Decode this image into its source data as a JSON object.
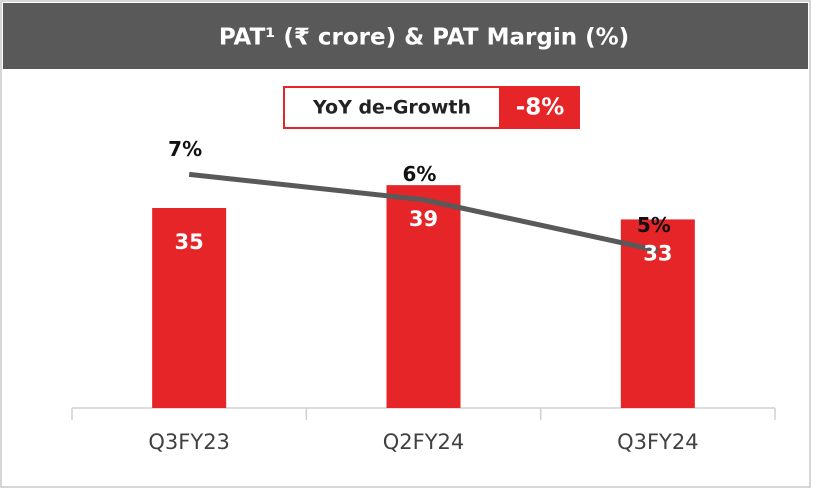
{
  "chart_data": {
    "type": "bar",
    "title": "PAT¹ (₹ crore) & PAT Margin (%)",
    "annotations": [
      "YoY de-Growth",
      "-8%"
    ],
    "categories": [
      "Q3FY23",
      "Q2FY24",
      "Q3FY24"
    ],
    "series": [
      {
        "type": "bar",
        "color": "#e52528",
        "values": [
          35,
          39,
          33
        ]
      },
      {
        "type": "line",
        "axis": "y2",
        "color": "#595959",
        "values": [
          6.9,
          6.4,
          5.4
        ],
        "value_labels": [
          "7%",
          "6%",
          "5%"
        ]
      }
    ],
    "ylim": [
      0,
      56
    ],
    "y2lim": [
      2.3,
      8.6
    ],
    "grid": false
  }
}
